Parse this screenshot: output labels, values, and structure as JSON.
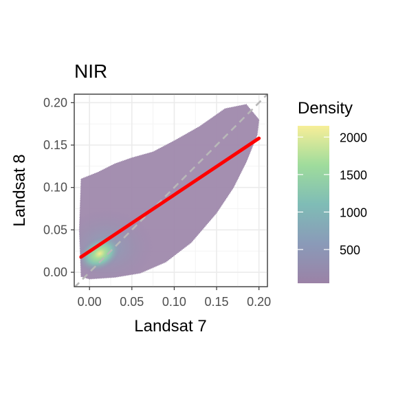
{
  "chart_data": {
    "type": "heatmap",
    "title": "NIR",
    "xlabel": "Landsat 7",
    "ylabel": "Landsat 8",
    "xlim": [
      -0.018,
      0.21
    ],
    "ylim": [
      -0.017,
      0.21
    ],
    "x_ticks": [
      0.0,
      0.05,
      0.1,
      0.15,
      0.2
    ],
    "x_tick_labels": [
      "0.00",
      "0.05",
      "0.10",
      "0.15",
      "0.20"
    ],
    "y_ticks": [
      0.0,
      0.05,
      0.1,
      0.15,
      0.2
    ],
    "y_tick_labels": [
      "0.00",
      "0.05",
      "0.10",
      "0.15",
      "0.20"
    ],
    "grid": true,
    "legend": {
      "title": "Density",
      "placement": "right",
      "min": 50,
      "max": 2150,
      "breaks": [
        500,
        1000,
        1500,
        2000
      ],
      "break_labels": [
        "500",
        "1000",
        "1500",
        "2000"
      ],
      "colors": [
        "#9b82a6",
        "#8a9ab8",
        "#7fbcb6",
        "#9fdc9c",
        "#f7ee98"
      ]
    },
    "point_cloud_outline": [
      [
        -0.01,
        -0.005
      ],
      [
        0.0,
        -0.008
      ],
      [
        0.03,
        -0.006
      ],
      [
        0.06,
        -0.001
      ],
      [
        0.09,
        0.012
      ],
      [
        0.12,
        0.035
      ],
      [
        0.15,
        0.07
      ],
      [
        0.17,
        0.1
      ],
      [
        0.185,
        0.13
      ],
      [
        0.198,
        0.162
      ],
      [
        0.2,
        0.18
      ],
      [
        0.185,
        0.198
      ],
      [
        0.16,
        0.193
      ],
      [
        0.13,
        0.172
      ],
      [
        0.1,
        0.155
      ],
      [
        0.075,
        0.142
      ],
      [
        0.05,
        0.135
      ],
      [
        0.03,
        0.128
      ],
      [
        0.01,
        0.118
      ],
      [
        -0.01,
        0.11
      ],
      [
        -0.012,
        0.05
      ]
    ],
    "density_core": {
      "x": 0.012,
      "y": 0.022
    },
    "fit_line": {
      "x": [
        -0.01,
        0.2
      ],
      "y": [
        0.018,
        0.158
      ],
      "color": "#ff0000"
    },
    "identity_line": {
      "x": [
        -0.018,
        0.21
      ],
      "y": [
        -0.018,
        0.21
      ],
      "color": "#b8b8b8"
    }
  }
}
